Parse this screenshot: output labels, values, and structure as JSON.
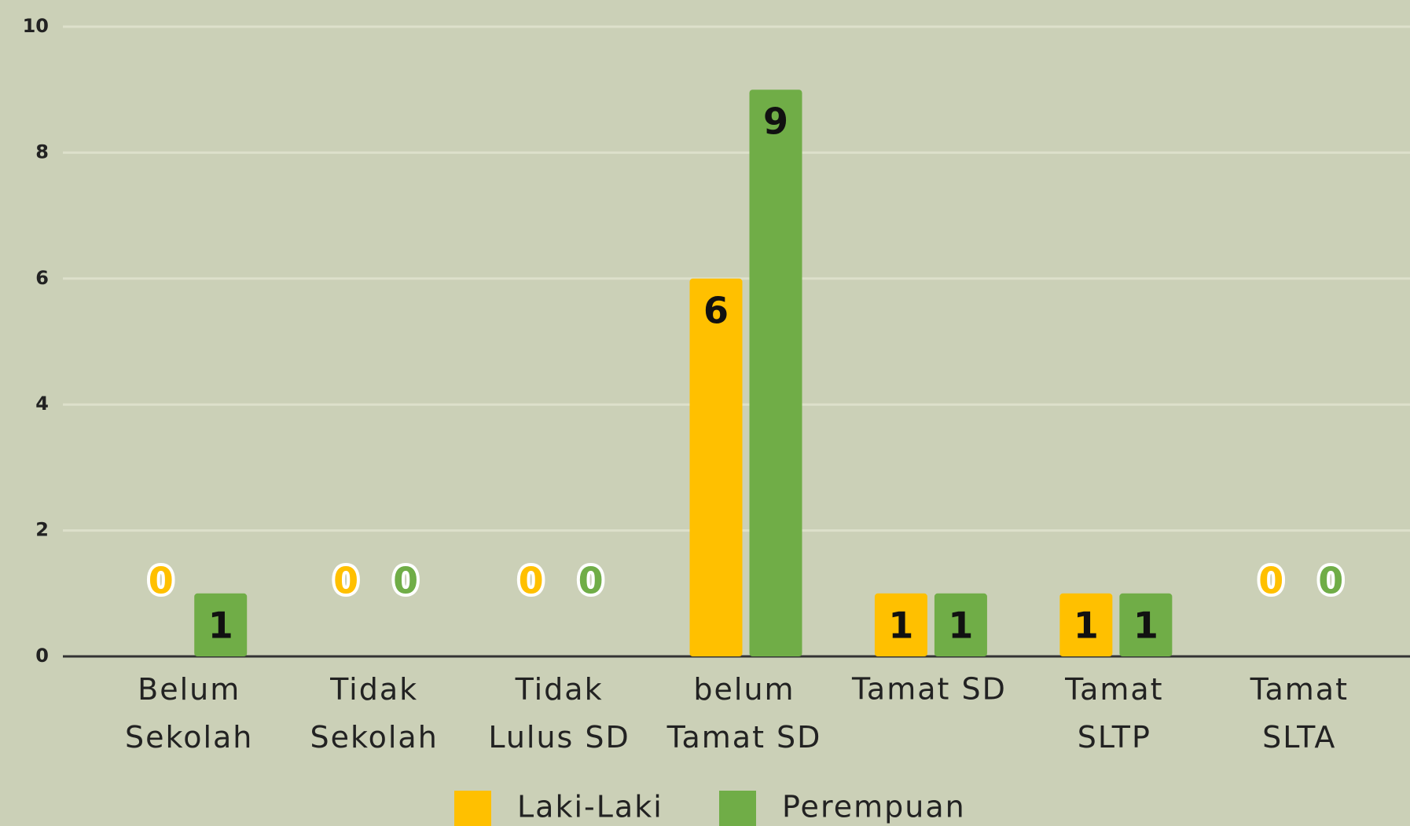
{
  "chart_data": {
    "type": "bar",
    "categories": [
      "Belum Sekolah",
      "Tidak Sekolah",
      "Tidak Lulus SD",
      "belum Tamat SD",
      "Tamat SD",
      "Tamat SLTP",
      "Tamat SLTA"
    ],
    "series": [
      {
        "name": "Laki-Laki",
        "color": "#ffc000",
        "values": [
          0,
          0,
          0,
          6,
          1,
          1,
          0
        ]
      },
      {
        "name": "Perempuan",
        "color": "#70ad47",
        "values": [
          1,
          0,
          0,
          9,
          1,
          1,
          0
        ]
      }
    ],
    "ylim": [
      0,
      10
    ],
    "yticks": [
      0,
      2,
      4,
      6,
      8,
      10
    ],
    "grid": true,
    "legend": "bottom"
  }
}
